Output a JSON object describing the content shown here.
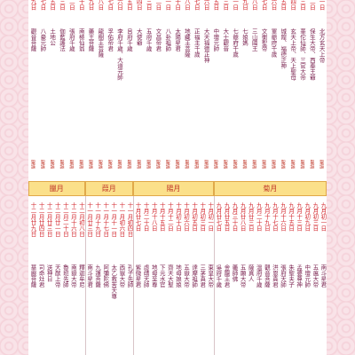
{
  "top": {
    "entries": [
      {
        "date": "初一日",
        "deity": "北方玄天上帝",
        "tag": "聖誕"
      },
      {
        "date": "初二日",
        "deity": "保生大帝、西秦王爺",
        "tag": "聖誕"
      },
      {
        "date": "初三日",
        "deity": "華佗仙師、三官大帝",
        "tag": "聖誕"
      },
      {
        "date": "初四日",
        "deity": "玄天上帝、天上聖母",
        "tag": "聖誕"
      },
      {
        "date": "初五日",
        "deity": "城隍、福德正神",
        "tag": "聖誕"
      },
      {
        "date": "初六日",
        "deity": "軍爺府千歲",
        "tag": "聖誕"
      },
      {
        "date": "初七日",
        "deity": "文衡聖帝",
        "tag": "聖誕"
      },
      {
        "date": "初八日",
        "deity": "三山國王",
        "tag": "聖誕"
      },
      {
        "date": "初九日",
        "deity": "七娘媽",
        "tag": "聖誕"
      },
      {
        "date": "十一日",
        "deity": "七爺府千歲",
        "tag": "聖誕"
      },
      {
        "date": "十三日",
        "deity": "大士觀音",
        "tag": "聖誕"
      },
      {
        "date": "十五日",
        "deity": "中壇元帥",
        "tag": "聖誕"
      },
      {
        "date": "十六日",
        "deity": "大天福德正神",
        "tag": "聖誕"
      },
      {
        "date": "十七日",
        "deity": "正福主千歲",
        "tag": "聖誕"
      },
      {
        "date": "十八日",
        "deity": "地藏王菩薩",
        "tag": "聖誕"
      },
      {
        "date": "二十日",
        "deity": "太陽星君",
        "tag": "聖誕"
      },
      {
        "date": "廿一日",
        "deity": "八卦祖師",
        "tag": "聖誕"
      },
      {
        "date": "廿二日",
        "deity": "文昌帝君",
        "tag": "聖誕"
      },
      {
        "date": "廿三日",
        "deity": "五府千歲",
        "tag": "聖誕"
      },
      {
        "date": "廿四日",
        "deity": "大使爺",
        "tag": "聖誕"
      },
      {
        "date": "廿五日",
        "deity": "呂府千歲",
        "tag": "聖誕"
      },
      {
        "date": "廿六日",
        "deity": "李府千歲、大道元帥",
        "tag": "聖誕"
      },
      {
        "date": "廿七日",
        "deity": "孚佑帝君",
        "tag": "聖誕"
      },
      {
        "date": "廿八日",
        "deity": "龍樹王菩薩",
        "tag": "聖誕"
      },
      {
        "date": "廿九日",
        "deity": "藥王菩薩",
        "tag": "聖誕"
      },
      {
        "date": "三十日",
        "deity": "南極仙翁",
        "tag": "聖誕"
      },
      {
        "date": "初二日",
        "deity": "張府千歲",
        "tag": "聖誕"
      },
      {
        "date": "初三日",
        "deity": "伽藍護法",
        "tag": "聖誕"
      },
      {
        "date": "初五日",
        "deity": "土地公",
        "tag": "聖誕"
      },
      {
        "date": "初七日",
        "deity": "八豪元帥",
        "tag": "聖誕"
      },
      {
        "date": "初九日",
        "deity": "觀音菩薩",
        "tag": "聖誕"
      }
    ]
  },
  "months": [
    {
      "name": "菊月",
      "entries": [
        {
          "date": "九月初一日",
          "deity": "南斗星君"
        },
        {
          "date": "九月初三日",
          "deity": "五瘟大帝"
        },
        {
          "date": "九月初九日",
          "deity": "中壇元帥"
        },
        {
          "date": "九月十三日",
          "deity": "孟婆尊神"
        },
        {
          "date": "九月十五日",
          "deity": "朱聖夫子"
        },
        {
          "date": "九月十六日",
          "deity": "張府天師"
        },
        {
          "date": "九月十七日",
          "deity": "洪恩真君"
        },
        {
          "date": "九月十九日",
          "deity": "觀音菩薩"
        },
        {
          "date": "九月二十日",
          "deity": "溫府千歲"
        },
        {
          "date": "九月廿三日",
          "deity": "薩真人"
        },
        {
          "date": "九月廿八日",
          "deity": "五顯大帝"
        },
        {
          "date": "九月三十日",
          "deity": "藥師佛"
        },
        {
          "date": "九月廿五日",
          "deity": "金龍王君"
        },
        {
          "date": "九月廿七日",
          "deity": "吳府千歲"
        }
      ]
    },
    {
      "name": "陽月",
      "entries": [
        {
          "date": "十月初一日",
          "deity": "東皇大帝"
        },
        {
          "date": "十月初三日",
          "deity": "三茅真君"
        },
        {
          "date": "十月初五日",
          "deity": "達摩祖師"
        },
        {
          "date": "十月初六日",
          "deity": "五嶽大帝"
        },
        {
          "date": "十月初十日",
          "deity": "地母娘娘"
        },
        {
          "date": "十月十二日",
          "deity": "齊天大聖"
        },
        {
          "date": "十月十五日",
          "deity": "下元水官"
        },
        {
          "date": "十月十八日",
          "deity": "地母至尊"
        },
        {
          "date": "十月二十日",
          "deity": "虛靖天師"
        },
        {
          "date": "十月廿七日",
          "deity": "紫微星君"
        }
      ]
    },
    {
      "name": "葭月",
      "entries": [
        {
          "date": "十一月初四日",
          "deity": "孔子先師"
        },
        {
          "date": "十一月初六日",
          "deity": "西嶽大帝"
        },
        {
          "date": "十一月十一日",
          "deity": "太乙救苦天尊"
        },
        {
          "date": "十一月十七日",
          "deity": "阿彌陀佛"
        },
        {
          "date": "十一月十九日",
          "deity": "九蓮菩薩"
        },
        {
          "date": "十一月廿三日",
          "deity": "南斗星君"
        }
      ]
    },
    {
      "name": "臘月",
      "entries": [
        {
          "date": "十二月初八日",
          "deity": "釋迦牟尼"
        },
        {
          "date": "十二月十六日",
          "deity": "南嶽大帝"
        },
        {
          "date": "十二月二十日",
          "deity": "魯班先師"
        },
        {
          "date": "十二月廿一日",
          "deity": "天猷上帝"
        },
        {
          "date": "十二月廿三日",
          "deity": "送神日"
        },
        {
          "date": "十二月廿四日",
          "deity": "司命灶君"
        },
        {
          "date": "十二月廿九日",
          "deity": "華嚴菩薩"
        }
      ]
    }
  ]
}
